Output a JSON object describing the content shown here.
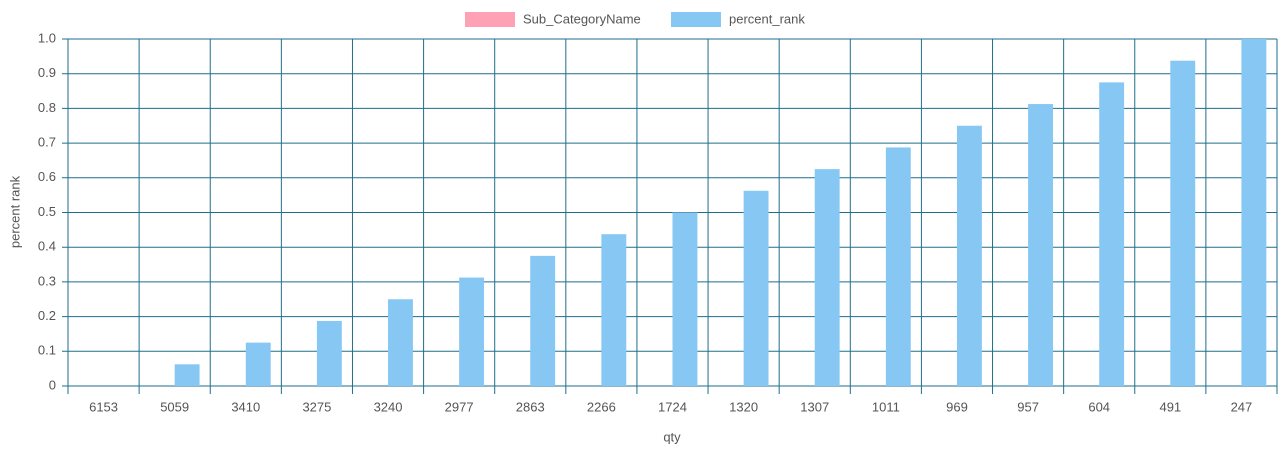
{
  "chart_data": {
    "type": "bar",
    "categories": [
      "6153",
      "5059",
      "3410",
      "3275",
      "3240",
      "2977",
      "2863",
      "2266",
      "1724",
      "1320",
      "1307",
      "1011",
      "969",
      "957",
      "604",
      "491",
      "247"
    ],
    "series": [
      {
        "name": "Sub_CategoryName",
        "color": "#ffa1b5",
        "values": [
          null,
          null,
          null,
          null,
          null,
          null,
          null,
          null,
          null,
          null,
          null,
          null,
          null,
          null,
          null,
          null,
          null
        ]
      },
      {
        "name": "percent_rank",
        "color": "#86c7f3",
        "values": [
          0,
          0.0625,
          0.125,
          0.1875,
          0.25,
          0.3125,
          0.375,
          0.4375,
          0.5,
          0.5625,
          0.625,
          0.6875,
          0.75,
          0.8125,
          0.875,
          0.9375,
          1
        ]
      }
    ],
    "x_label": "qty",
    "y_label": "percent rank",
    "ylim": [
      0,
      1
    ],
    "yticks": [
      0,
      0.1,
      0.2,
      0.3,
      0.4,
      0.5,
      0.6,
      0.7,
      0.8,
      0.9,
      {
        "value": 1,
        "label": "1.0"
      }
    ],
    "grid": true,
    "legend": "top"
  }
}
